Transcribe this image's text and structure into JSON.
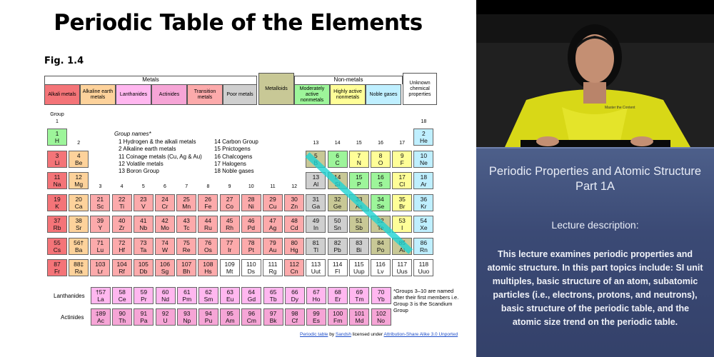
{
  "slide": {
    "title": "Periodic Table of the Elements",
    "figure_label": "Fig. 1.4",
    "brackets": {
      "metals": "Metals",
      "nonmetals": "Non-metals"
    },
    "categories": [
      {
        "key": "alkali",
        "label": "Alkali metals",
        "color": "#f47478"
      },
      {
        "key": "alkaline",
        "label": "Alkaline earth metals",
        "color": "#fdd29b"
      },
      {
        "key": "lanthanide",
        "label": "Lanthanides",
        "color": "#ffb7ef"
      },
      {
        "key": "actinide",
        "label": "Actinides",
        "color": "#f6a5d6"
      },
      {
        "key": "transition",
        "label": "Transition metals",
        "color": "#fcaaab"
      },
      {
        "key": "poor",
        "label": "Poor metals",
        "color": "#cfcfcf"
      },
      {
        "key": "metalloid",
        "label": "Metalloids",
        "color": "#c8c896"
      },
      {
        "key": "active",
        "label": "Moderately active nonmetals",
        "color": "#9df59a"
      },
      {
        "key": "highly",
        "label": "Highly active nonmetals",
        "color": "#fffe98"
      },
      {
        "key": "noble",
        "label": "Noble gases",
        "color": "#bfefff"
      },
      {
        "key": "unknown",
        "label": "Unknown chemical properties",
        "color": "#ffffff"
      }
    ],
    "group_word": "Group",
    "group_numbers": [
      "1",
      "2",
      "3",
      "4",
      "5",
      "6",
      "7",
      "8",
      "9",
      "10",
      "11",
      "12",
      "13",
      "14",
      "15",
      "16",
      "17",
      "18"
    ],
    "legend_title": "Group names*",
    "legend_left": [
      "1  Hydrogen & the alkali metals",
      "2  Alkaline earth metals",
      "11  Coinage metals (Cu, Ag & Au)",
      "12  Volatile metals",
      "13  Boron Group"
    ],
    "legend_right": [
      "14  Carbon Group",
      "15  Pnictogens",
      "16  Chalcogens",
      "17  Halogens",
      "18  Noble gases"
    ],
    "row_labels": {
      "lanthanides": "Lanthanides",
      "actinides": "Actinides"
    },
    "footnote": "*Groups 3–10 are named after their first members i.e. Group 3 is the Scandium Group",
    "credit": {
      "pre": "Periodic table",
      "by": "by",
      "author": "Sandsh",
      "mid": "licensed under",
      "license": "Attribution-Share Alike 3.0 Unported"
    },
    "elements": [
      {
        "n": "1",
        "s": "H",
        "c": "active",
        "g": 1,
        "p": 1
      },
      {
        "n": "2",
        "s": "He",
        "c": "noble",
        "g": 18,
        "p": 1
      },
      {
        "n": "3",
        "s": "Li",
        "c": "alkali",
        "g": 1,
        "p": 2
      },
      {
        "n": "4",
        "s": "Be",
        "c": "alkaline",
        "g": 2,
        "p": 2
      },
      {
        "n": "5",
        "s": "B",
        "c": "metalloid",
        "g": 13,
        "p": 2
      },
      {
        "n": "6",
        "s": "C",
        "c": "active",
        "g": 14,
        "p": 2
      },
      {
        "n": "7",
        "s": "N",
        "c": "highly",
        "g": 15,
        "p": 2
      },
      {
        "n": "8",
        "s": "O",
        "c": "highly",
        "g": 16,
        "p": 2
      },
      {
        "n": "9",
        "s": "F",
        "c": "highly",
        "g": 17,
        "p": 2
      },
      {
        "n": "10",
        "s": "Ne",
        "c": "noble",
        "g": 18,
        "p": 2
      },
      {
        "n": "11",
        "s": "Na",
        "c": "alkali",
        "g": 1,
        "p": 3
      },
      {
        "n": "12",
        "s": "Mg",
        "c": "alkaline",
        "g": 2,
        "p": 3
      },
      {
        "n": "13",
        "s": "Al",
        "c": "poor",
        "g": 13,
        "p": 3
      },
      {
        "n": "14",
        "s": "Si",
        "c": "metalloid",
        "g": 14,
        "p": 3
      },
      {
        "n": "15",
        "s": "P",
        "c": "active",
        "g": 15,
        "p": 3
      },
      {
        "n": "16",
        "s": "S",
        "c": "active",
        "g": 16,
        "p": 3
      },
      {
        "n": "17",
        "s": "Cl",
        "c": "highly",
        "g": 17,
        "p": 3
      },
      {
        "n": "18",
        "s": "Ar",
        "c": "noble",
        "g": 18,
        "p": 3
      },
      {
        "n": "19",
        "s": "K",
        "c": "alkali",
        "g": 1,
        "p": 4
      },
      {
        "n": "20",
        "s": "Ca",
        "c": "alkaline",
        "g": 2,
        "p": 4
      },
      {
        "n": "21",
        "s": "Sc",
        "c": "transition",
        "g": 3,
        "p": 4
      },
      {
        "n": "22",
        "s": "Ti",
        "c": "transition",
        "g": 4,
        "p": 4
      },
      {
        "n": "23",
        "s": "V",
        "c": "transition",
        "g": 5,
        "p": 4
      },
      {
        "n": "24",
        "s": "Cr",
        "c": "transition",
        "g": 6,
        "p": 4
      },
      {
        "n": "25",
        "s": "Mn",
        "c": "transition",
        "g": 7,
        "p": 4
      },
      {
        "n": "26",
        "s": "Fe",
        "c": "transition",
        "g": 8,
        "p": 4
      },
      {
        "n": "27",
        "s": "Co",
        "c": "transition",
        "g": 9,
        "p": 4
      },
      {
        "n": "28",
        "s": "Ni",
        "c": "transition",
        "g": 10,
        "p": 4
      },
      {
        "n": "29",
        "s": "Cu",
        "c": "transition",
        "g": 11,
        "p": 4
      },
      {
        "n": "30",
        "s": "Zn",
        "c": "transition",
        "g": 12,
        "p": 4
      },
      {
        "n": "31",
        "s": "Ga",
        "c": "poor",
        "g": 13,
        "p": 4
      },
      {
        "n": "32",
        "s": "Ge",
        "c": "metalloid",
        "g": 14,
        "p": 4
      },
      {
        "n": "33",
        "s": "As",
        "c": "metalloid",
        "g": 15,
        "p": 4
      },
      {
        "n": "34",
        "s": "Se",
        "c": "active",
        "g": 16,
        "p": 4
      },
      {
        "n": "35",
        "s": "Br",
        "c": "highly",
        "g": 17,
        "p": 4
      },
      {
        "n": "36",
        "s": "Kr",
        "c": "noble",
        "g": 18,
        "p": 4
      },
      {
        "n": "37",
        "s": "Rb",
        "c": "alkali",
        "g": 1,
        "p": 5
      },
      {
        "n": "38",
        "s": "Sr",
        "c": "alkaline",
        "g": 2,
        "p": 5
      },
      {
        "n": "39",
        "s": "Y",
        "c": "transition",
        "g": 3,
        "p": 5
      },
      {
        "n": "40",
        "s": "Zr",
        "c": "transition",
        "g": 4,
        "p": 5
      },
      {
        "n": "41",
        "s": "Nb",
        "c": "transition",
        "g": 5,
        "p": 5
      },
      {
        "n": "42",
        "s": "Mo",
        "c": "transition",
        "g": 6,
        "p": 5
      },
      {
        "n": "43",
        "s": "Tc",
        "c": "transition",
        "g": 7,
        "p": 5
      },
      {
        "n": "44",
        "s": "Ru",
        "c": "transition",
        "g": 8,
        "p": 5
      },
      {
        "n": "45",
        "s": "Rh",
        "c": "transition",
        "g": 9,
        "p": 5
      },
      {
        "n": "46",
        "s": "Pd",
        "c": "transition",
        "g": 10,
        "p": 5
      },
      {
        "n": "47",
        "s": "Ag",
        "c": "transition",
        "g": 11,
        "p": 5
      },
      {
        "n": "48",
        "s": "Cd",
        "c": "transition",
        "g": 12,
        "p": 5
      },
      {
        "n": "49",
        "s": "In",
        "c": "poor",
        "g": 13,
        "p": 5
      },
      {
        "n": "50",
        "s": "Sn",
        "c": "poor",
        "g": 14,
        "p": 5
      },
      {
        "n": "51",
        "s": "Sb",
        "c": "metalloid",
        "g": 15,
        "p": 5
      },
      {
        "n": "52",
        "s": "Te",
        "c": "metalloid",
        "g": 16,
        "p": 5
      },
      {
        "n": "53",
        "s": "I",
        "c": "highly",
        "g": 17,
        "p": 5
      },
      {
        "n": "54",
        "s": "Xe",
        "c": "noble",
        "g": 18,
        "p": 5
      },
      {
        "n": "55",
        "s": "Cs",
        "c": "alkali",
        "g": 1,
        "p": 6
      },
      {
        "n": "56†",
        "s": "Ba",
        "c": "alkaline",
        "g": 2,
        "p": 6
      },
      {
        "n": "71",
        "s": "Lu",
        "c": "transition",
        "g": 3,
        "p": 6
      },
      {
        "n": "72",
        "s": "Hf",
        "c": "transition",
        "g": 4,
        "p": 6
      },
      {
        "n": "73",
        "s": "Ta",
        "c": "transition",
        "g": 5,
        "p": 6
      },
      {
        "n": "74",
        "s": "W",
        "c": "transition",
        "g": 6,
        "p": 6
      },
      {
        "n": "75",
        "s": "Re",
        "c": "transition",
        "g": 7,
        "p": 6
      },
      {
        "n": "76",
        "s": "Os",
        "c": "transition",
        "g": 8,
        "p": 6
      },
      {
        "n": "77",
        "s": "Ir",
        "c": "transition",
        "g": 9,
        "p": 6
      },
      {
        "n": "78",
        "s": "Pt",
        "c": "transition",
        "g": 10,
        "p": 6
      },
      {
        "n": "79",
        "s": "Au",
        "c": "transition",
        "g": 11,
        "p": 6
      },
      {
        "n": "80",
        "s": "Hg",
        "c": "transition",
        "g": 12,
        "p": 6
      },
      {
        "n": "81",
        "s": "Tl",
        "c": "poor",
        "g": 13,
        "p": 6
      },
      {
        "n": "82",
        "s": "Pb",
        "c": "poor",
        "g": 14,
        "p": 6
      },
      {
        "n": "83",
        "s": "Bi",
        "c": "poor",
        "g": 15,
        "p": 6
      },
      {
        "n": "84",
        "s": "Po",
        "c": "metalloid",
        "g": 16,
        "p": 6
      },
      {
        "n": "85",
        "s": "At",
        "c": "metalloid",
        "g": 17,
        "p": 6
      },
      {
        "n": "86",
        "s": "Rn",
        "c": "noble",
        "g": 18,
        "p": 6
      },
      {
        "n": "87",
        "s": "Fr",
        "c": "alkali",
        "g": 1,
        "p": 7
      },
      {
        "n": "88‡",
        "s": "Ra",
        "c": "alkaline",
        "g": 2,
        "p": 7
      },
      {
        "n": "103",
        "s": "Lr",
        "c": "transition",
        "g": 3,
        "p": 7
      },
      {
        "n": "104",
        "s": "Rf",
        "c": "transition",
        "g": 4,
        "p": 7
      },
      {
        "n": "105",
        "s": "Db",
        "c": "transition",
        "g": 5,
        "p": 7
      },
      {
        "n": "106",
        "s": "Sg",
        "c": "transition",
        "g": 6,
        "p": 7
      },
      {
        "n": "107",
        "s": "Bh",
        "c": "transition",
        "g": 7,
        "p": 7
      },
      {
        "n": "108",
        "s": "Hs",
        "c": "transition",
        "g": 8,
        "p": 7
      },
      {
        "n": "109",
        "s": "Mt",
        "c": "unknown",
        "g": 9,
        "p": 7
      },
      {
        "n": "110",
        "s": "Ds",
        "c": "unknown",
        "g": 10,
        "p": 7
      },
      {
        "n": "111",
        "s": "Rg",
        "c": "unknown",
        "g": 11,
        "p": 7
      },
      {
        "n": "112",
        "s": "Cn",
        "c": "transition",
        "g": 12,
        "p": 7
      },
      {
        "n": "113",
        "s": "Uut",
        "c": "unknown",
        "g": 13,
        "p": 7
      },
      {
        "n": "114",
        "s": "Fl",
        "c": "unknown",
        "g": 14,
        "p": 7
      },
      {
        "n": "115",
        "s": "Uup",
        "c": "unknown",
        "g": 15,
        "p": 7
      },
      {
        "n": "116",
        "s": "Lv",
        "c": "unknown",
        "g": 16,
        "p": 7
      },
      {
        "n": "117",
        "s": "Uus",
        "c": "unknown",
        "g": 17,
        "p": 7
      },
      {
        "n": "118",
        "s": "Uuo",
        "c": "unknown",
        "g": 18,
        "p": 7
      }
    ],
    "lanthanides": [
      {
        "n": "†57",
        "s": "La"
      },
      {
        "n": "58",
        "s": "Ce"
      },
      {
        "n": "59",
        "s": "Pr"
      },
      {
        "n": "60",
        "s": "Nd"
      },
      {
        "n": "61",
        "s": "Pm"
      },
      {
        "n": "62",
        "s": "Sm"
      },
      {
        "n": "63",
        "s": "Eu"
      },
      {
        "n": "64",
        "s": "Gd"
      },
      {
        "n": "65",
        "s": "Tb"
      },
      {
        "n": "66",
        "s": "Dy"
      },
      {
        "n": "67",
        "s": "Ho"
      },
      {
        "n": "68",
        "s": "Er"
      },
      {
        "n": "69",
        "s": "Tm"
      },
      {
        "n": "70",
        "s": "Yb"
      }
    ],
    "actinides": [
      {
        "n": "‡89",
        "s": "Ac"
      },
      {
        "n": "90",
        "s": "Th"
      },
      {
        "n": "91",
        "s": "Pa"
      },
      {
        "n": "92",
        "s": "U"
      },
      {
        "n": "93",
        "s": "Np"
      },
      {
        "n": "94",
        "s": "Pu"
      },
      {
        "n": "95",
        "s": "Am"
      },
      {
        "n": "96",
        "s": "Cm"
      },
      {
        "n": "97",
        "s": "Bk"
      },
      {
        "n": "98",
        "s": "Cf"
      },
      {
        "n": "99",
        "s": "Es"
      },
      {
        "n": "100",
        "s": "Fm"
      },
      {
        "n": "101",
        "s": "Md"
      },
      {
        "n": "102",
        "s": "No"
      }
    ],
    "diagonal_color": "#1ed3d3"
  },
  "video": {
    "shirt_text": "Master the Content",
    "title": "Periodic Properties and Atomic Structure Part 1A",
    "subtitle": "Lecture description:",
    "description": "This lecture examines periodic properties and atomic structure. In this part topics include: SI unit multiples, basic structure of an atom, subatomic particles (i.e., electrons, protons, and neutrons), basic structure of the periodic table, and the atomic size trend on the periodic table."
  }
}
